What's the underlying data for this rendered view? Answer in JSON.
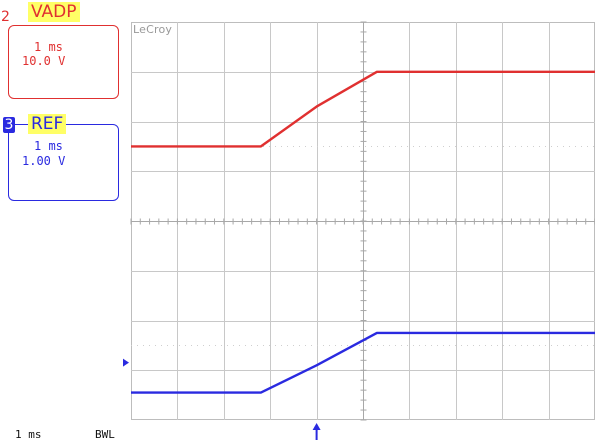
{
  "brand": "LeCroy",
  "channels": [
    {
      "number": "2",
      "name": "VADP",
      "timebase": "1 ms",
      "scale": "10.0 V",
      "color": "#e03030"
    },
    {
      "number": "3",
      "name": "REF",
      "timebase": "1 ms",
      "scale": "1.00 V",
      "color": "#2a2ae0"
    }
  ],
  "footer": {
    "timebase": "1 ms",
    "bwl": "BWL"
  },
  "chart_data": {
    "type": "line",
    "x_unit": "divisions",
    "xlim": [
      0,
      10
    ],
    "ylim": [
      0,
      8
    ],
    "grid": true,
    "series": [
      {
        "name": "VADP",
        "color": "#e03030",
        "x": [
          0,
          2.8,
          4.0,
          5.3,
          10
        ],
        "y": [
          5.5,
          5.5,
          6.3,
          7.0,
          7.0
        ]
      },
      {
        "name": "REF",
        "color": "#2a2ae0",
        "x": [
          0,
          2.8,
          4.0,
          5.3,
          10
        ],
        "y": [
          0.55,
          0.55,
          1.1,
          1.75,
          1.75
        ]
      }
    ]
  }
}
